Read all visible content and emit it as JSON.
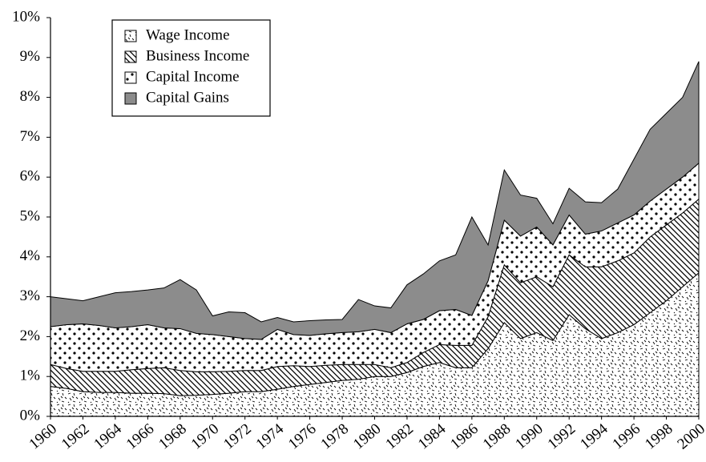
{
  "chart_data": {
    "type": "stacked-area",
    "x": [
      1960,
      1961,
      1962,
      1963,
      1964,
      1965,
      1966,
      1967,
      1968,
      1969,
      1970,
      1971,
      1972,
      1973,
      1974,
      1975,
      1976,
      1977,
      1978,
      1979,
      1980,
      1981,
      1982,
      1983,
      1984,
      1985,
      1986,
      1987,
      1988,
      1989,
      1990,
      1991,
      1992,
      1993,
      1994,
      1995,
      1996,
      1997,
      1998,
      1999,
      2000
    ],
    "series": [
      {
        "name": "Wage Income",
        "pattern": "dashes",
        "color": "#ffffff",
        "values": [
          0.75,
          0.7,
          0.62,
          0.6,
          0.6,
          0.58,
          0.58,
          0.57,
          0.52,
          0.53,
          0.55,
          0.58,
          0.62,
          0.62,
          0.68,
          0.75,
          0.8,
          0.85,
          0.9,
          0.93,
          1.0,
          1.0,
          1.1,
          1.25,
          1.35,
          1.22,
          1.22,
          1.7,
          2.35,
          1.95,
          2.1,
          1.9,
          2.55,
          2.2,
          1.95,
          2.1,
          2.3,
          2.6,
          2.9,
          3.25,
          3.6
        ]
      },
      {
        "name": "Business Income",
        "pattern": "diagonal",
        "color": "#ffffff",
        "values": [
          0.55,
          0.5,
          0.51,
          0.53,
          0.53,
          0.59,
          0.62,
          0.65,
          0.63,
          0.59,
          0.57,
          0.55,
          0.53,
          0.53,
          0.57,
          0.52,
          0.45,
          0.43,
          0.4,
          0.37,
          0.3,
          0.22,
          0.25,
          0.35,
          0.45,
          0.56,
          0.56,
          0.8,
          1.45,
          1.4,
          1.4,
          1.35,
          1.5,
          1.55,
          1.8,
          1.8,
          1.8,
          1.9,
          1.9,
          1.85,
          1.85
        ]
      },
      {
        "name": "Capital Income",
        "pattern": "dots",
        "color": "#ffffff",
        "values": [
          0.95,
          1.1,
          1.19,
          1.15,
          1.09,
          1.08,
          1.1,
          1.0,
          1.05,
          0.96,
          0.93,
          0.87,
          0.8,
          0.78,
          0.93,
          0.78,
          0.78,
          0.79,
          0.8,
          0.82,
          0.88,
          0.88,
          0.97,
          0.83,
          0.85,
          0.9,
          0.75,
          0.9,
          1.12,
          1.17,
          1.25,
          1.05,
          1.0,
          0.82,
          0.9,
          0.95,
          0.95,
          0.9,
          0.9,
          0.9,
          0.9
        ]
      },
      {
        "name": "Capital Gains",
        "pattern": "solid",
        "color": "#8c8c8c",
        "values": [
          0.75,
          0.65,
          0.58,
          0.72,
          0.88,
          0.88,
          0.87,
          1.0,
          1.23,
          1.09,
          0.47,
          0.62,
          0.65,
          0.44,
          0.3,
          0.32,
          0.37,
          0.35,
          0.33,
          0.81,
          0.59,
          0.62,
          0.98,
          1.14,
          1.25,
          1.37,
          2.47,
          0.9,
          1.26,
          1.03,
          0.72,
          0.53,
          0.67,
          0.81,
          0.71,
          0.85,
          1.4,
          1.8,
          1.9,
          2.0,
          2.55
        ]
      }
    ],
    "xlim": [
      1960,
      2000
    ],
    "xticks": [
      1960,
      1962,
      1964,
      1966,
      1968,
      1970,
      1972,
      1974,
      1976,
      1978,
      1980,
      1982,
      1984,
      1986,
      1988,
      1990,
      1992,
      1994,
      1996,
      1998,
      2000
    ],
    "ylim": [
      0,
      10
    ],
    "yticks": [
      {
        "value": 0,
        "label": "0%"
      },
      {
        "value": 1,
        "label": "1%"
      },
      {
        "value": 2,
        "label": "2%"
      },
      {
        "value": 3,
        "label": "3%"
      },
      {
        "value": 4,
        "label": "4%"
      },
      {
        "value": 5,
        "label": "5%"
      },
      {
        "value": 6,
        "label": "6%"
      },
      {
        "value": 7,
        "label": "7%"
      },
      {
        "value": 8,
        "label": "8%"
      },
      {
        "value": 9,
        "label": "9%"
      },
      {
        "value": 10,
        "label": "10%"
      }
    ],
    "legend": "upper left",
    "grid": false
  }
}
